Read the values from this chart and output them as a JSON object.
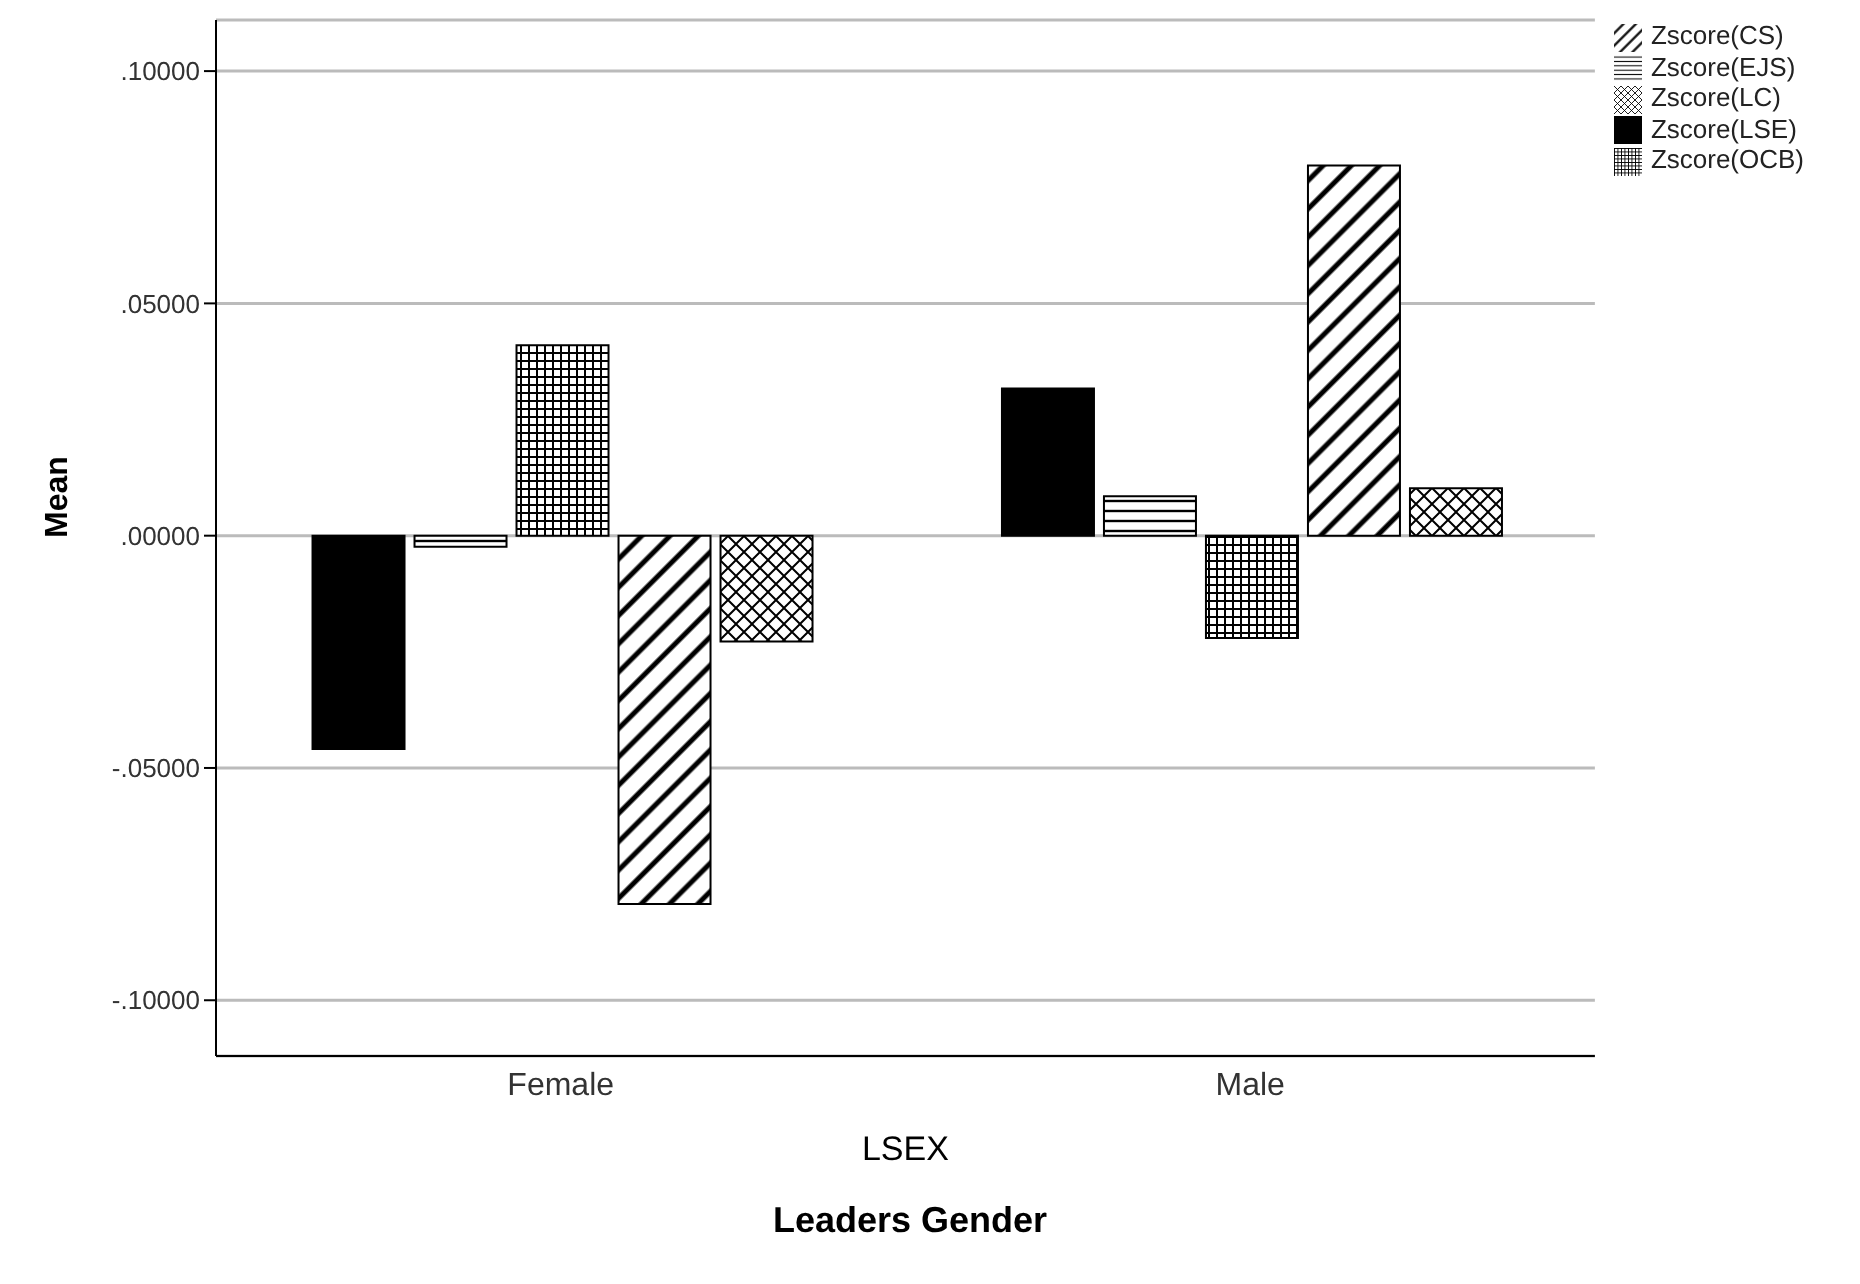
{
  "chart_data": {
    "type": "bar",
    "xlabel": "LSEX",
    "ylabel": "Mean",
    "annotations": [
      "Leaders Gender"
    ],
    "categories": [
      "Female",
      "Male"
    ],
    "series": [
      {
        "name": "Zscore(LSE)",
        "color": "#000000",
        "values": [
          -0.0459,
          0.0317
        ]
      },
      {
        "name": "Zscore(EJS)",
        "color": "#000000",
        "values": [
          -0.0024,
          0.0085
        ]
      },
      {
        "name": "Zscore(OCB)",
        "color": "#000000",
        "values": [
          0.041,
          -0.022
        ]
      },
      {
        "name": "Zscore(CS)",
        "color": "#000000",
        "values": [
          -0.0793,
          0.0797
        ]
      },
      {
        "name": "Zscore(LC)",
        "color": "#000000",
        "values": [
          -0.0228,
          0.0102
        ]
      }
    ],
    "ylim": [
      -0.112,
      0.111
    ],
    "yticks": [
      {
        "value": -0.1,
        "label": "-.10000"
      },
      {
        "value": -0.05,
        "label": "-.05000"
      },
      {
        "value": 0,
        "label": ".00000"
      },
      {
        "value": 0.05,
        "label": ".05000"
      },
      {
        "value": 0.1,
        "label": ".10000"
      }
    ],
    "grid": "y",
    "legend": "top right"
  }
}
